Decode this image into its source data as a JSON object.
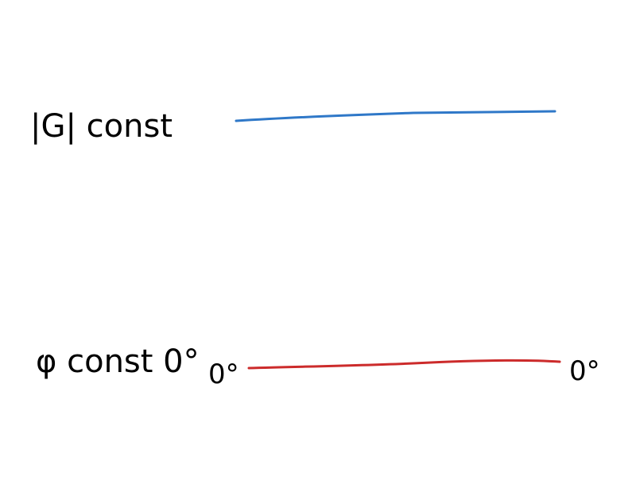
{
  "rows": [
    {
      "label": "|G| const",
      "color": "#2f78c8",
      "start_label": "",
      "end_label": ""
    },
    {
      "label": "φ const 0°",
      "color": "#cc2b2b",
      "start_label": "0°",
      "end_label": "0°"
    }
  ]
}
